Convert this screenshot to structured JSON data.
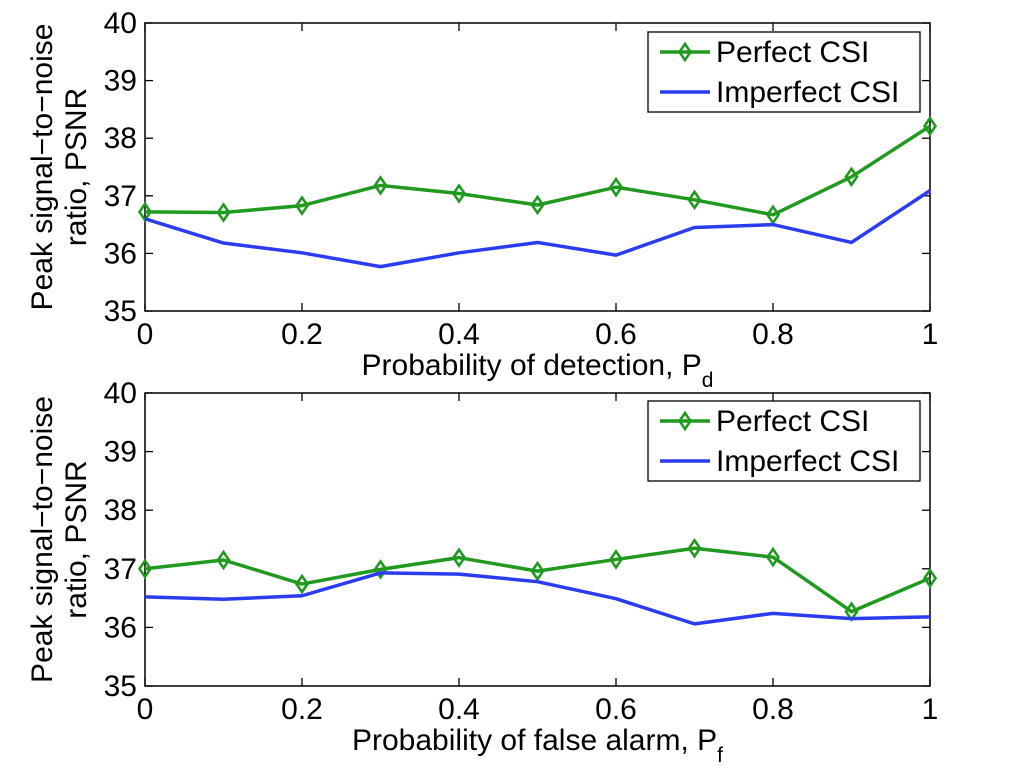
{
  "colors": {
    "perfect": "#1f9a1f",
    "imperfect": "#2b3cf0",
    "axis": "#000000"
  },
  "chart_data": [
    {
      "type": "line",
      "xlabel": "Probability of detection, P",
      "xlabel_sub": "d",
      "ylabel_line1": "Peak signal−to−noise",
      "ylabel_line2": "ratio, PSNR",
      "xlim": [
        0,
        1
      ],
      "ylim": [
        35,
        40
      ],
      "xticks": [
        "0",
        "0.2",
        "0.4",
        "0.6",
        "0.8",
        "1"
      ],
      "yticks": [
        "35",
        "36",
        "37",
        "38",
        "39",
        "40"
      ],
      "legend_position": "top-right",
      "x": [
        0,
        0.1,
        0.2,
        0.3,
        0.4,
        0.5,
        0.6,
        0.7,
        0.8,
        0.9,
        1.0
      ],
      "series": [
        {
          "name": "Perfect CSI",
          "marker": "diamond",
          "values": [
            36.72,
            36.71,
            36.83,
            37.18,
            37.04,
            36.84,
            37.15,
            36.93,
            36.67,
            37.33,
            38.21
          ]
        },
        {
          "name": "Imperfect CSI",
          "marker": "none",
          "values": [
            36.6,
            36.18,
            36.01,
            35.77,
            36.01,
            36.19,
            35.97,
            36.45,
            36.5,
            36.19,
            37.09
          ]
        }
      ]
    },
    {
      "type": "line",
      "xlabel": "Probability of false alarm, P",
      "xlabel_sub": "f",
      "ylabel_line1": "Peak signal−to−noise",
      "ylabel_line2": "ratio, PSNR",
      "xlim": [
        0,
        1
      ],
      "ylim": [
        35,
        40
      ],
      "xticks": [
        "0",
        "0.2",
        "0.4",
        "0.6",
        "0.8",
        "1"
      ],
      "yticks": [
        "35",
        "36",
        "37",
        "38",
        "39",
        "40"
      ],
      "legend_position": "top-right",
      "x": [
        0,
        0.1,
        0.2,
        0.3,
        0.4,
        0.5,
        0.6,
        0.7,
        0.8,
        0.9,
        1.0
      ],
      "series": [
        {
          "name": "Perfect CSI",
          "marker": "diamond",
          "values": [
            37.0,
            37.15,
            36.74,
            36.99,
            37.19,
            36.96,
            37.16,
            37.35,
            37.2,
            36.27,
            36.84
          ]
        },
        {
          "name": "Imperfect CSI",
          "marker": "none",
          "values": [
            36.52,
            36.48,
            36.54,
            36.93,
            36.91,
            36.78,
            36.49,
            36.06,
            36.24,
            36.15,
            36.18
          ]
        }
      ]
    }
  ]
}
